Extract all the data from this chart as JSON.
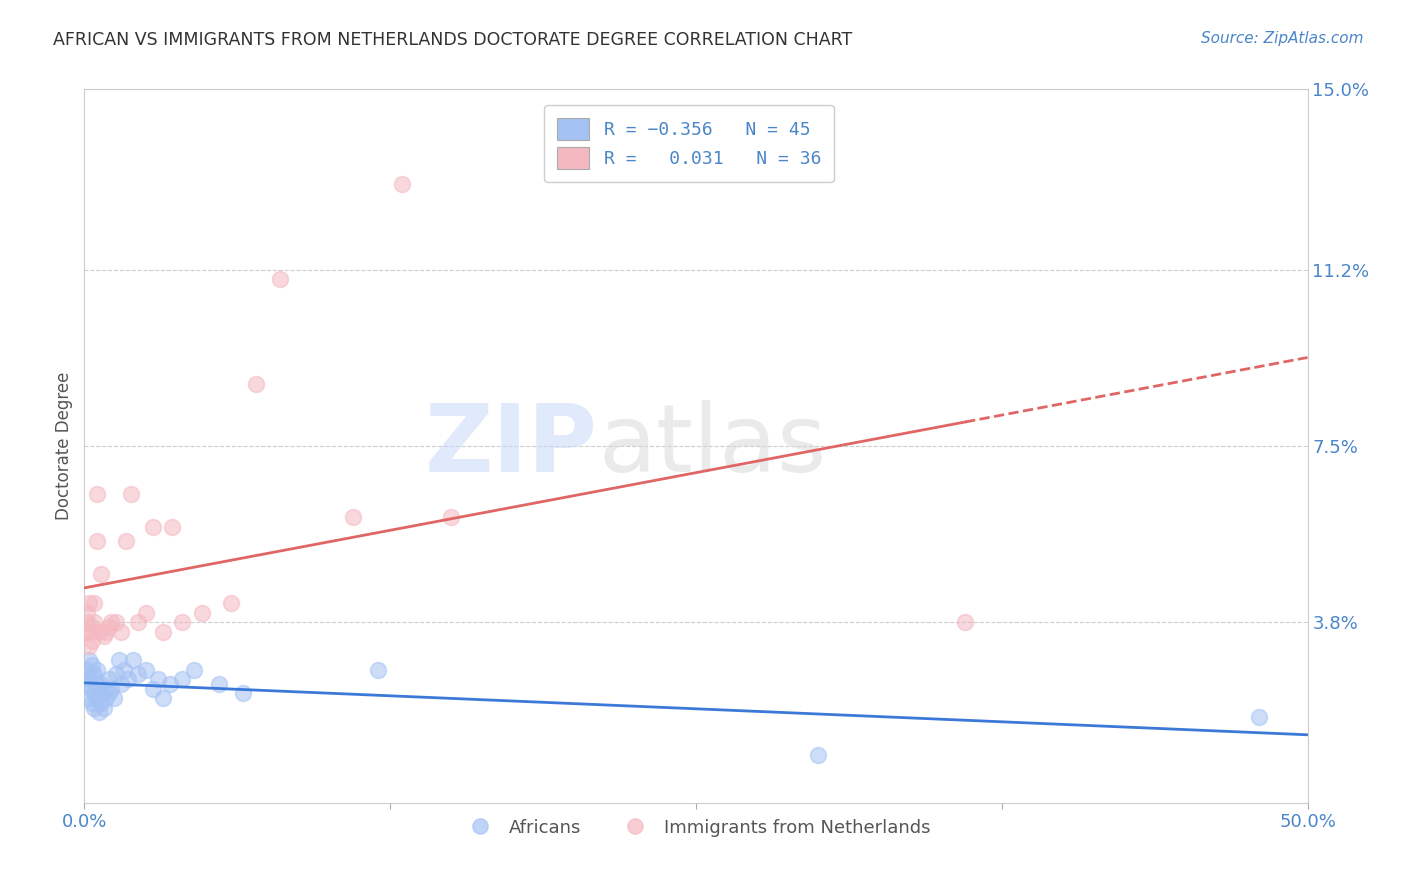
{
  "title": "AFRICAN VS IMMIGRANTS FROM NETHERLANDS DOCTORATE DEGREE CORRELATION CHART",
  "source": "Source: ZipAtlas.com",
  "ylabel": "Doctorate Degree",
  "xlim": [
    0.0,
    0.5
  ],
  "ylim": [
    0.0,
    0.15
  ],
  "yticks": [
    0.038,
    0.075,
    0.112,
    0.15
  ],
  "ytick_labels": [
    "3.8%",
    "7.5%",
    "11.2%",
    "15.0%"
  ],
  "xticks": [
    0.0,
    0.125,
    0.25,
    0.375,
    0.5
  ],
  "xtick_labels": [
    "0.0%",
    "",
    "",
    "",
    "50.0%"
  ],
  "blue_color": "#a4c2f4",
  "pink_color": "#f4b8c1",
  "blue_line_color": "#3c78d8",
  "pink_line_color": "#e06666",
  "africans_x": [
    0.001,
    0.001,
    0.002,
    0.002,
    0.002,
    0.003,
    0.003,
    0.003,
    0.003,
    0.004,
    0.004,
    0.004,
    0.005,
    0.005,
    0.005,
    0.006,
    0.006,
    0.007,
    0.007,
    0.008,
    0.008,
    0.009,
    0.01,
    0.01,
    0.011,
    0.012,
    0.013,
    0.014,
    0.015,
    0.016,
    0.018,
    0.02,
    0.022,
    0.025,
    0.028,
    0.03,
    0.032,
    0.035,
    0.04,
    0.045,
    0.055,
    0.065,
    0.12,
    0.3,
    0.48
  ],
  "africans_y": [
    0.025,
    0.028,
    0.022,
    0.026,
    0.03,
    0.021,
    0.024,
    0.027,
    0.029,
    0.02,
    0.023,
    0.027,
    0.022,
    0.025,
    0.028,
    0.019,
    0.023,
    0.021,
    0.025,
    0.02,
    0.024,
    0.022,
    0.023,
    0.026,
    0.024,
    0.022,
    0.027,
    0.03,
    0.025,
    0.028,
    0.026,
    0.03,
    0.027,
    0.028,
    0.024,
    0.026,
    0.022,
    0.025,
    0.026,
    0.028,
    0.025,
    0.023,
    0.028,
    0.01,
    0.018
  ],
  "netherlands_x": [
    0.001,
    0.001,
    0.001,
    0.002,
    0.002,
    0.002,
    0.003,
    0.003,
    0.004,
    0.004,
    0.005,
    0.005,
    0.006,
    0.007,
    0.008,
    0.009,
    0.01,
    0.011,
    0.013,
    0.015,
    0.017,
    0.019,
    0.022,
    0.025,
    0.028,
    0.032,
    0.036,
    0.04,
    0.048,
    0.06,
    0.07,
    0.08,
    0.11,
    0.13,
    0.15,
    0.36
  ],
  "netherlands_y": [
    0.036,
    0.038,
    0.04,
    0.033,
    0.036,
    0.042,
    0.034,
    0.037,
    0.038,
    0.042,
    0.055,
    0.065,
    0.036,
    0.048,
    0.035,
    0.036,
    0.037,
    0.038,
    0.038,
    0.036,
    0.055,
    0.065,
    0.038,
    0.04,
    0.058,
    0.036,
    0.058,
    0.038,
    0.04,
    0.042,
    0.088,
    0.11,
    0.06,
    0.13,
    0.06,
    0.038
  ],
  "watermark_zip": "ZIP",
  "watermark_atlas": "atlas",
  "background_color": "#ffffff",
  "grid_color": "#cccccc"
}
